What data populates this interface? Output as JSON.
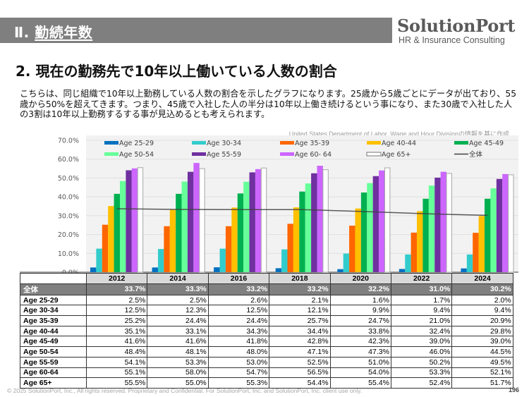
{
  "header": {
    "section_prefix": "Ⅱ. ",
    "section_title": "勤続年数",
    "logo_main": "SolutionPort",
    "logo_sub": "HR & Insurance Consulting"
  },
  "page_title": "2. 現在の勤務先で10年以上働いている人数の割合",
  "description": "こちらは、同じ組織で10年以上勤務している人数の割合を示したグラフになります。25歳から5歳ごとにデータが出ており、55歳から50%を超えてきます。つまり、45歳で入社した人の半分は10年以上働き続けるという事になり、また30歳で入社した人の3割は10年以上勤務するする事が見込めるとも考えられます。",
  "source_note": "United States Department of Labor, Wage and Hour Divisionの情報を基に作成",
  "table": {
    "corner": "",
    "total_label": "全体"
  },
  "footer": {
    "copyright": "© 2025 SolutionPort, Inc., All rights reserved. Proprietary and Confidential. For SolutionPort, Inc. and SolutionPort, Inc. client use only.",
    "page_number": "196"
  },
  "chart_data": {
    "type": "bar",
    "title": "",
    "xlabel": "",
    "ylabel": "",
    "ylim": [
      0,
      70
    ],
    "yticks": [
      "0.0%",
      "10.0%",
      "20.0%",
      "30.0%",
      "40.0%",
      "50.0%",
      "60.0%",
      "70.0%"
    ],
    "grid": true,
    "legend_position": "top-inside",
    "categories": [
      "2012",
      "2014",
      "2016",
      "2018",
      "2020",
      "2022",
      "2024"
    ],
    "series": [
      {
        "name": "Age 25-29",
        "color": "#0070c0",
        "values": [
          2.5,
          2.5,
          2.6,
          2.1,
          1.6,
          1.7,
          2.0
        ]
      },
      {
        "name": "Age 30-34",
        "color": "#33cccc",
        "values": [
          12.5,
          12.3,
          12.5,
          12.1,
          9.9,
          9.4,
          9.4
        ]
      },
      {
        "name": "Age 35-39",
        "color": "#ff6600",
        "values": [
          25.2,
          24.4,
          24.4,
          25.7,
          24.7,
          21.0,
          20.9
        ]
      },
      {
        "name": "Age 40-44",
        "color": "#ffc000",
        "values": [
          35.1,
          33.1,
          34.3,
          34.4,
          33.8,
          32.4,
          29.8
        ]
      },
      {
        "name": "Age 45-49",
        "color": "#00b050",
        "values": [
          41.6,
          41.6,
          41.8,
          42.8,
          42.3,
          39.0,
          39.0
        ]
      },
      {
        "name": "Age 50-54",
        "color": "#66ff99",
        "values": [
          48.4,
          48.1,
          48.0,
          47.1,
          47.3,
          46.0,
          44.5
        ]
      },
      {
        "name": "Age 55-59",
        "color": "#7030a0",
        "values": [
          54.1,
          53.3,
          53.0,
          52.5,
          51.0,
          50.2,
          49.5
        ]
      },
      {
        "name": "Age 60- 64",
        "color": "#cc66ff",
        "values": [
          55.1,
          58.0,
          54.7,
          56.5,
          54.0,
          53.3,
          52.1
        ]
      },
      {
        "name": "Age 65+",
        "color": "#ffffff",
        "values": [
          55.5,
          55.0,
          55.3,
          54.4,
          55.4,
          52.4,
          51.7
        ]
      }
    ],
    "line_series": {
      "name": "全体",
      "color": "#404040",
      "values": [
        33.7,
        33.3,
        33.2,
        33.2,
        32.2,
        31.0,
        30.2
      ]
    },
    "table_row_labels": [
      "Age 25-29",
      "Age 30-34",
      "Age 35-39",
      "Age 40-44",
      "Age 45-49",
      "Age 50-54",
      "Age 55-59",
      "Age 60-64",
      "Age 65+"
    ]
  }
}
